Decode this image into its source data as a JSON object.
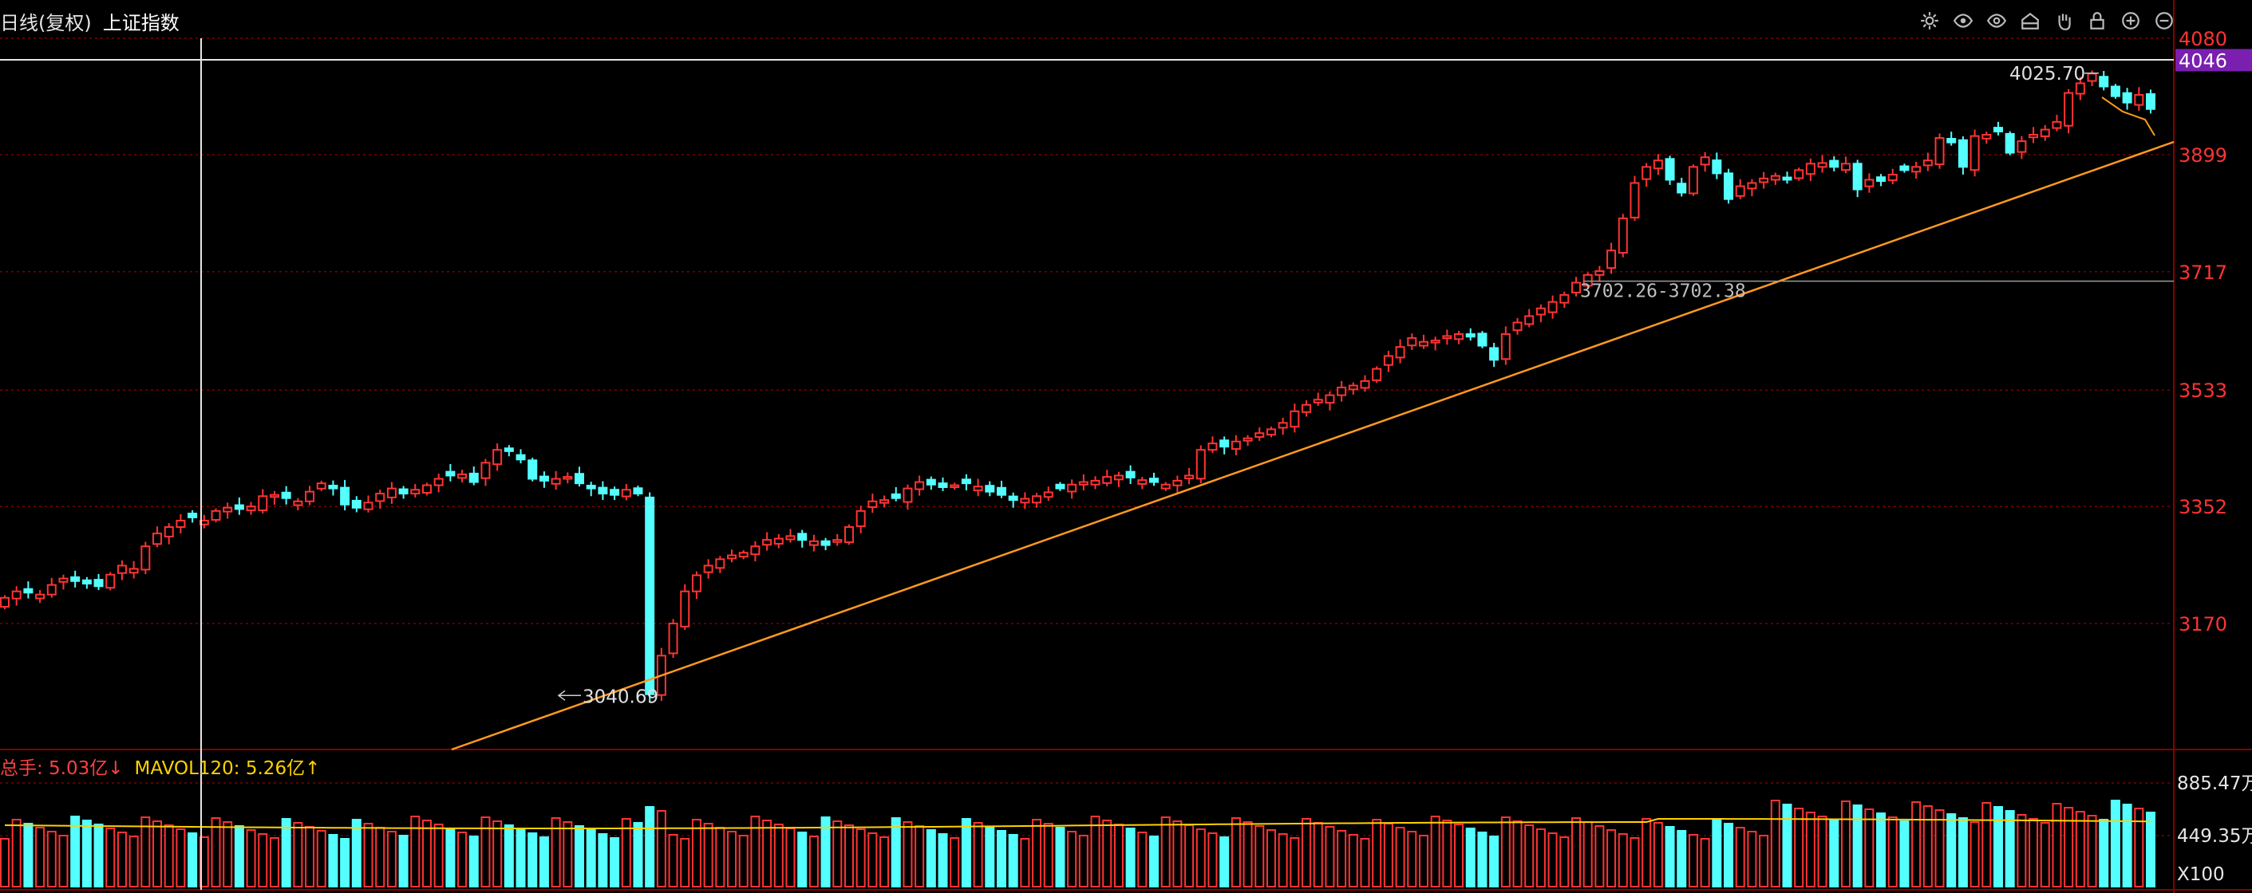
{
  "header": {
    "period": "日线(复权)",
    "name": "上证指数"
  },
  "toolbar": {
    "icons": [
      "settings-icon",
      "eye-icon",
      "eye-icon",
      "home-icon",
      "hand-icon",
      "lock-icon",
      "zoom-in-icon",
      "zoom-out-icon"
    ]
  },
  "price_axis": {
    "ticks": [
      "4080",
      "3899",
      "3717",
      "3533",
      "3352",
      "3170"
    ],
    "current": "4046"
  },
  "volume_panel": {
    "vol_label": "总手: 5.03亿↓",
    "ma_label": "MAVOL120: 5.26亿↑",
    "ticks": [
      "885.47万",
      "449.35万"
    ],
    "unit": "X100"
  },
  "annotations": {
    "high": "4025.70",
    "low": "3040.69",
    "range": "3702.26-3702.38"
  },
  "colors": {
    "up": "#ff3333",
    "down": "#54ffff",
    "trend": "#ff9a1f",
    "ma": "#ffd200",
    "axis": "#ff3333"
  },
  "chart_data": {
    "type": "candlestick",
    "close_series": [
      3210,
      3220,
      3218,
      3215,
      3230,
      3240,
      3236,
      3232,
      3228,
      3246,
      3260,
      3255,
      3290,
      3310,
      3320,
      3330,
      3335,
      3330,
      3345,
      3350,
      3348,
      3352,
      3368,
      3370,
      3365,
      3360,
      3375,
      3388,
      3380,
      3355,
      3350,
      3358,
      3372,
      3380,
      3372,
      3378,
      3385,
      3395,
      3400,
      3402,
      3390,
      3420,
      3440,
      3438,
      3425,
      3395,
      3392,
      3395,
      3398,
      3388,
      3380,
      3372,
      3370,
      3378,
      3372,
      3060,
      3120,
      3170,
      3220,
      3245,
      3260,
      3270,
      3276,
      3280,
      3290,
      3300,
      3302,
      3306,
      3300,
      3298,
      3292,
      3300,
      3320,
      3345,
      3360,
      3362,
      3365,
      3380,
      3390,
      3386,
      3382,
      3385,
      3388,
      3383,
      3375,
      3370,
      3362,
      3364,
      3368,
      3374,
      3380,
      3386,
      3390,
      3392,
      3398,
      3400,
      3397,
      3393,
      3390,
      3386,
      3392,
      3400,
      3440,
      3450,
      3445,
      3453,
      3458,
      3466,
      3472,
      3482,
      3500,
      3510,
      3518,
      3525,
      3537,
      3540,
      3547,
      3566,
      3586,
      3600,
      3614,
      3608,
      3610,
      3617,
      3620,
      3616,
      3602,
      3580,
      3620,
      3638,
      3648,
      3660,
      3670,
      3681,
      3700,
      3712,
      3718,
      3750,
      3800,
      3855,
      3880,
      3890,
      3860,
      3840,
      3880,
      3895,
      3870,
      3830,
      3850,
      3855,
      3862,
      3866,
      3860,
      3875,
      3885,
      3886,
      3880,
      3885,
      3845,
      3860,
      3858,
      3868,
      3875,
      3880,
      3890,
      3925,
      3918,
      3880,
      3928,
      3930,
      3935,
      3902,
      3920,
      3930,
      3938,
      3950,
      3995,
      4010,
      4025,
      4005,
      3990,
      3980,
      3992,
      3970
    ]
  }
}
